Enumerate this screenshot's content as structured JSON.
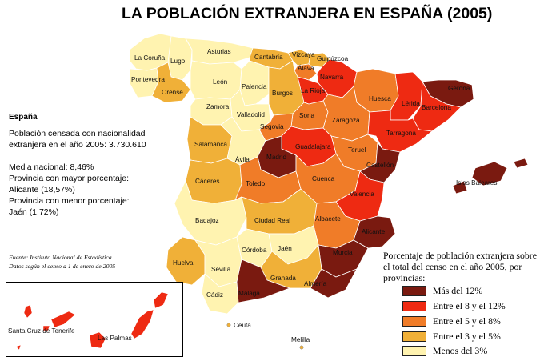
{
  "title": "LA POBLACIÓN EXTRANJERA EN ESPAÑA (2005)",
  "info": {
    "heading": "España",
    "line1": "Población censada con nacionalidad",
    "line2": "extranjera en el año 2005: 3.730.610",
    "line3": "Media nacional: 8,46%",
    "line4": "Provincia con mayor porcentaje:",
    "line5": "Alicante (18,57%)",
    "line6": "Provincia con menor porcentaje:",
    "line7": "Jaén (1,72%)"
  },
  "source": {
    "line1": "Fuente: Instituto Nacional de Estadística.",
    "line2": "Datos según el censo a 1 de enero de 2005"
  },
  "legend": {
    "title": "Porcentaje de población extranjera sobre el total del censo en el año 2005, por provincias:",
    "items": [
      {
        "label": "Más del 12%",
        "color": "#7a1a10"
      },
      {
        "label": "Entre el 8 y el 12%",
        "color": "#ee2a12"
      },
      {
        "label": "Entre el 5 y el 8%",
        "color": "#f07c28"
      },
      {
        "label": "Entre el 3 y el 5%",
        "color": "#f0b038"
      },
      {
        "label": "Menos del 3%",
        "color": "#fff3b0"
      }
    ]
  },
  "provinces": {
    "la_coruna": "La Coruña",
    "lugo": "Lugo",
    "asturias": "Asturias",
    "cantabria": "Cantabria",
    "vizcaya": "Vizcaya",
    "guipuzcoa": "Guipúzcoa",
    "alava": "Álava",
    "navarra": "Navarra",
    "pontevedra": "Pontevedra",
    "orense": "Orense",
    "leon": "León",
    "palencia": "Palencia",
    "burgos": "Burgos",
    "la_rioja": "La Rioja",
    "huesca": "Huesca",
    "lerida": "Lérida",
    "gerona": "Gerona",
    "barcelona": "Barcelona",
    "zamora": "Zamora",
    "valladolid": "Valladolid",
    "soria": "Soria",
    "zaragoza": "Zaragoza",
    "tarragona": "Tarragona",
    "segovia": "Segovia",
    "salamanca": "Salamanca",
    "guadalajara": "Guadalajara",
    "teruel": "Teruel",
    "avila": "Ávila",
    "madrid": "Madrid",
    "castellon": "Castellón",
    "caceres": "Cáceres",
    "toledo": "Toledo",
    "cuenca": "Cuenca",
    "baleares": "Islas Baleares",
    "valencia": "Valencia",
    "badajoz": "Badajoz",
    "ciudad_real": "Ciudad Real",
    "albacete": "Albacete",
    "alicante": "Alicante",
    "cordoba": "Córdoba",
    "jaen": "Jaén",
    "murcia": "Murcia",
    "huelva": "Huelva",
    "sevilla": "Sevilla",
    "granada": "Granada",
    "almeria": "Almería",
    "cadiz": "Cádiz",
    "malaga": "Málaga",
    "ceuta": "Ceuta",
    "melilla": "Melilla",
    "santa_cruz": "Santa Cruz de Tenerife",
    "las_palmas": "Las Palmas"
  }
}
